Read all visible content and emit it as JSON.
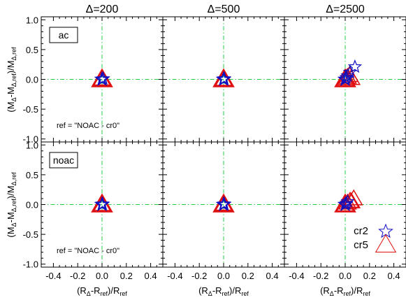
{
  "chart_data": {
    "type": "scatter",
    "col_titles": [
      "Δ=200",
      "Δ=500",
      "Δ=2500"
    ],
    "row_labels": [
      "ac",
      "noac"
    ],
    "ref_note": "ref = \"NOAC - cr0\"",
    "xlim": [
      -0.5,
      0.5
    ],
    "ylim": [
      -1.05,
      1.05
    ],
    "xticks": [
      -0.4,
      -0.2,
      0.0,
      0.2,
      0.4
    ],
    "xtick_labels": [
      "-0.4",
      "-0.2",
      "0.0",
      "0.2",
      "0.4"
    ],
    "yticks": [
      -1.0,
      -0.5,
      0.0,
      0.5,
      1.0
    ],
    "ytick_labels": [
      "-1.0",
      "-0.5",
      "0.0",
      "0.5",
      "1.0"
    ],
    "xlabel": {
      "base": "(R",
      "sub1": "Δ",
      "mid": "-R",
      "sub2": "ref",
      "post": ")/R",
      "sub3": "ref"
    },
    "ylabel": {
      "base": "(M",
      "sub1": "Δ",
      "mid": "-M",
      "sub2": "Δ,ref",
      "post": ")/M",
      "sub3": "Δ,ref"
    },
    "legend": [
      {
        "label": "cr2",
        "marker": "star",
        "color": "#1010c0"
      },
      {
        "label": "cr5",
        "marker": "triangle",
        "color": "#e01010"
      }
    ],
    "reference_lines": {
      "color": "#22cc44",
      "style": "dash-dot",
      "x": 0,
      "y": 0
    },
    "panels": [
      {
        "row": 0,
        "col": 0,
        "cr2": [
          {
            "x": 0.0,
            "y": 0.0
          },
          {
            "x": 0.01,
            "y": 0.01
          }
        ],
        "cr5": [
          {
            "x": 0.0,
            "y": 0.0
          },
          {
            "x": 0.0,
            "y": 0.01
          }
        ]
      },
      {
        "row": 0,
        "col": 1,
        "cr2": [
          {
            "x": 0.0,
            "y": 0.0
          },
          {
            "x": 0.005,
            "y": 0.01
          }
        ],
        "cr5": [
          {
            "x": 0.0,
            "y": 0.0
          },
          {
            "x": 0.005,
            "y": 0.005
          }
        ]
      },
      {
        "row": 0,
        "col": 2,
        "cr2": [
          {
            "x": 0.0,
            "y": 0.0
          },
          {
            "x": 0.01,
            "y": 0.03
          },
          {
            "x": 0.02,
            "y": 0.06
          },
          {
            "x": 0.04,
            "y": 0.12
          },
          {
            "x": 0.08,
            "y": 0.21
          }
        ],
        "cr5": [
          {
            "x": 0.0,
            "y": 0.0
          },
          {
            "x": 0.01,
            "y": 0.02
          },
          {
            "x": 0.02,
            "y": 0.04
          },
          {
            "x": 0.035,
            "y": 0.07
          },
          {
            "x": 0.05,
            "y": 0.02
          }
        ]
      },
      {
        "row": 1,
        "col": 0,
        "cr2": [
          {
            "x": 0.0,
            "y": 0.0
          },
          {
            "x": 0.005,
            "y": 0.01
          }
        ],
        "cr5": [
          {
            "x": 0.0,
            "y": 0.0
          },
          {
            "x": 0.005,
            "y": 0.005
          }
        ]
      },
      {
        "row": 1,
        "col": 1,
        "cr2": [
          {
            "x": 0.0,
            "y": 0.0
          },
          {
            "x": 0.005,
            "y": 0.01
          }
        ],
        "cr5": [
          {
            "x": 0.0,
            "y": 0.0
          },
          {
            "x": 0.0,
            "y": 0.01
          }
        ]
      },
      {
        "row": 1,
        "col": 2,
        "cr2": [
          {
            "x": 0.0,
            "y": 0.0
          },
          {
            "x": 0.01,
            "y": 0.02
          },
          {
            "x": 0.02,
            "y": 0.05
          }
        ],
        "cr5": [
          {
            "x": 0.0,
            "y": 0.0
          },
          {
            "x": 0.02,
            "y": 0.03
          },
          {
            "x": 0.04,
            "y": 0.06
          },
          {
            "x": 0.07,
            "y": 0.1
          },
          {
            "x": 0.05,
            "y": 0.05
          }
        ]
      }
    ]
  }
}
